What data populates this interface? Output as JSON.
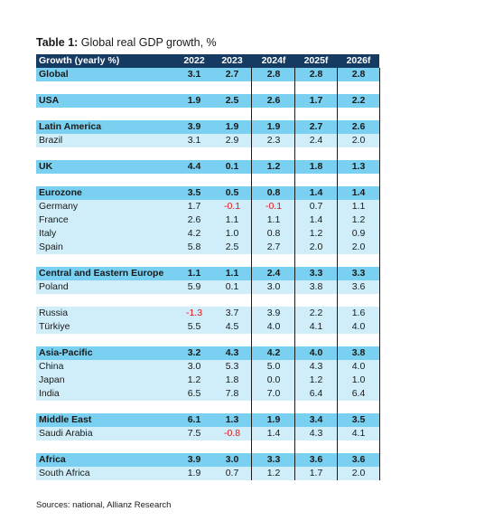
{
  "title": {
    "prefix": "Table 1:",
    "text": "Global real GDP growth, %"
  },
  "header": {
    "label": "Growth (yearly %)",
    "years": [
      "2022",
      "2023",
      "2024f",
      "2025f",
      "2026f"
    ]
  },
  "rows": [
    {
      "label": "Global",
      "values": [
        "3.1",
        "2.7",
        "2.8",
        "2.8",
        "2.8"
      ],
      "style": "hi"
    },
    {
      "gap": true
    },
    {
      "label": "USA",
      "values": [
        "1.9",
        "2.5",
        "2.6",
        "1.7",
        "2.2"
      ],
      "style": "hi"
    },
    {
      "gap": true
    },
    {
      "label": "Latin America",
      "values": [
        "3.9",
        "1.9",
        "1.9",
        "2.7",
        "2.6"
      ],
      "style": "hi"
    },
    {
      "label": "Brazil",
      "values": [
        "3.1",
        "2.9",
        "2.3",
        "2.4",
        "2.0"
      ],
      "style": "lo"
    },
    {
      "gap": true
    },
    {
      "label": "UK",
      "values": [
        "4.4",
        "0.1",
        "1.2",
        "1.8",
        "1.3"
      ],
      "style": "hi"
    },
    {
      "gap": true
    },
    {
      "label": "Eurozone",
      "values": [
        "3.5",
        "0.5",
        "0.8",
        "1.4",
        "1.4"
      ],
      "style": "hi"
    },
    {
      "label": "Germany",
      "values": [
        "1.7",
        "-0.1",
        "-0.1",
        "0.7",
        "1.1"
      ],
      "style": "lo"
    },
    {
      "label": "France",
      "values": [
        "2.6",
        "1.1",
        "1.1",
        "1.4",
        "1.2"
      ],
      "style": "lo"
    },
    {
      "label": "Italy",
      "values": [
        "4.2",
        "1.0",
        "0.8",
        "1.2",
        "0.9"
      ],
      "style": "lo"
    },
    {
      "label": "Spain",
      "values": [
        "5.8",
        "2.5",
        "2.7",
        "2.0",
        "2.0"
      ],
      "style": "lo"
    },
    {
      "gap": true
    },
    {
      "label": "Central and Eastern Europe",
      "values": [
        "1.1",
        "1.1",
        "2.4",
        "3.3",
        "3.3"
      ],
      "style": "hi"
    },
    {
      "label": "Poland",
      "values": [
        "5.9",
        "0.1",
        "3.0",
        "3.8",
        "3.6"
      ],
      "style": "lo"
    },
    {
      "gap": true
    },
    {
      "label": "Russia",
      "values": [
        "-1.3",
        "3.7",
        "3.9",
        "2.2",
        "1.6"
      ],
      "style": "lo"
    },
    {
      "label": "Türkiye",
      "values": [
        "5.5",
        "4.5",
        "4.0",
        "4.1",
        "4.0"
      ],
      "style": "lo"
    },
    {
      "gap": true
    },
    {
      "label": "Asia-Pacific",
      "values": [
        "3.2",
        "4.3",
        "4.2",
        "4.0",
        "3.8"
      ],
      "style": "hi"
    },
    {
      "label": "China",
      "values": [
        "3.0",
        "5.3",
        "5.0",
        "4.3",
        "4.0"
      ],
      "style": "lo"
    },
    {
      "label": "Japan",
      "values": [
        "1.2",
        "1.8",
        "0.0",
        "1.2",
        "1.0"
      ],
      "style": "lo"
    },
    {
      "label": "India",
      "values": [
        "6.5",
        "7.8",
        "7.0",
        "6.4",
        "6.4"
      ],
      "style": "lo"
    },
    {
      "gap": true
    },
    {
      "label": "Middle East",
      "values": [
        "6.1",
        "1.3",
        "1.9",
        "3.4",
        "3.5"
      ],
      "style": "hi"
    },
    {
      "label": "Saudi Arabia",
      "values": [
        "7.5",
        "-0.8",
        "1.4",
        "4.3",
        "4.1"
      ],
      "style": "lo"
    },
    {
      "gap": true
    },
    {
      "label": "Africa",
      "values": [
        "3.9",
        "3.0",
        "3.3",
        "3.6",
        "3.6"
      ],
      "style": "hi"
    },
    {
      "label": "South Africa",
      "values": [
        "1.9",
        "0.7",
        "1.2",
        "1.7",
        "2.0"
      ],
      "style": "lo"
    }
  ],
  "source": "Sources: national, Allianz Research",
  "colors": {
    "header_bg": "#163b62",
    "highlight_bg": "#7ad0f0",
    "light_bg": "#cfeef9",
    "negative": "#e0131a"
  }
}
